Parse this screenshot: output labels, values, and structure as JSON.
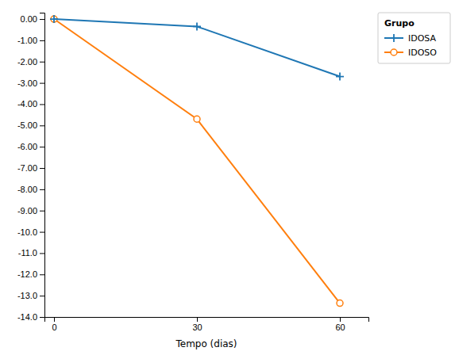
{
  "chart_data": {
    "type": "line",
    "xlabel": "Tempo (dias)",
    "x": [
      0,
      30,
      60
    ],
    "series": [
      {
        "name": "IDOSA",
        "values": [
          0.0,
          -0.35,
          -2.7
        ],
        "marker": "plus"
      },
      {
        "name": "IDOSO",
        "values": [
          0.0,
          -4.7,
          -13.35
        ],
        "marker": "circle"
      }
    ],
    "xlim": [
      -2,
      66
    ],
    "xticks": [
      0,
      30,
      60
    ],
    "ylim": [
      -14.0,
      0.3
    ],
    "yticks": [
      {
        "value": 0.0,
        "label": "0.00"
      },
      {
        "value": -1.0,
        "label": "-1.00"
      },
      {
        "value": -2.0,
        "label": "-2.00"
      },
      {
        "value": -3.0,
        "label": "-3.00"
      },
      {
        "value": -4.0,
        "label": "-4.00"
      },
      {
        "value": -5.0,
        "label": "-5.00"
      },
      {
        "value": -6.0,
        "label": "-6.00"
      },
      {
        "value": -7.0,
        "label": "-7.00"
      },
      {
        "value": -8.0,
        "label": "-8.00"
      },
      {
        "value": -9.0,
        "label": "-9.00"
      },
      {
        "value": -10.0,
        "label": "-10.0"
      },
      {
        "value": -11.0,
        "label": "-11.0"
      },
      {
        "value": -12.0,
        "label": "-12.0"
      },
      {
        "value": -13.0,
        "label": "-13.0"
      },
      {
        "value": -14.0,
        "label": "-14.0"
      }
    ],
    "legend": "upper right",
    "legend_title": "Grupo",
    "grid": false
  }
}
